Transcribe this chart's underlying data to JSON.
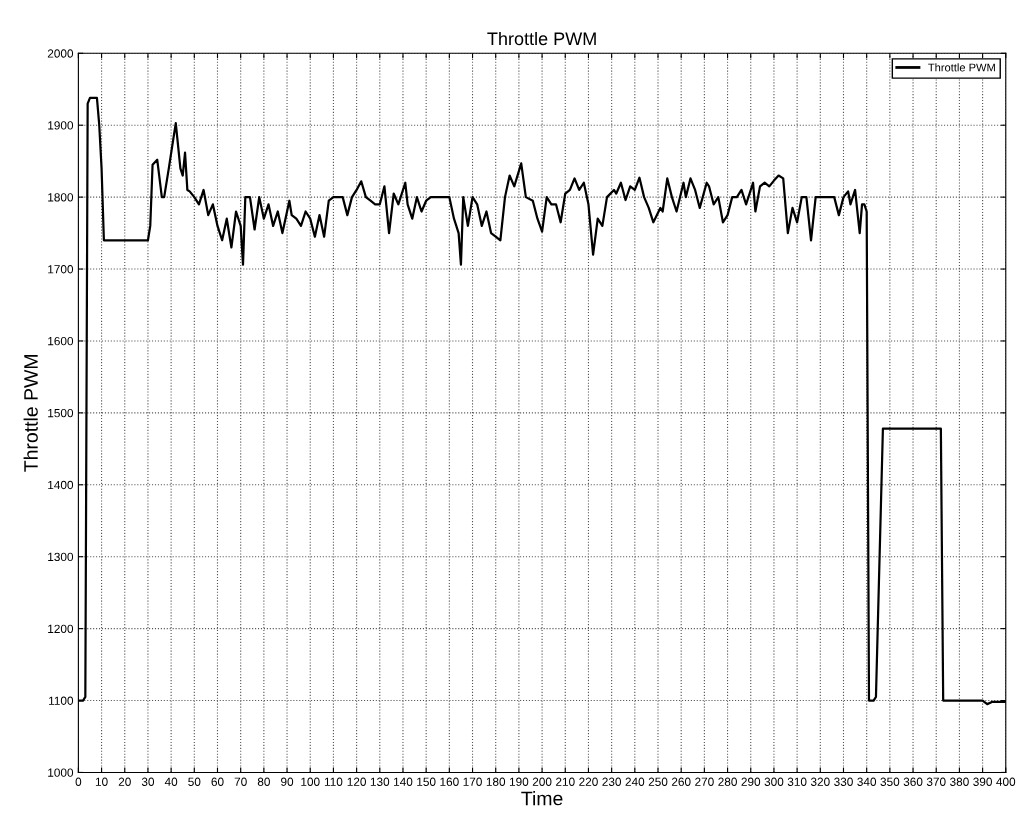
{
  "chart_data": {
    "type": "line",
    "title": "Throttle PWM",
    "xlabel": "Time",
    "ylabel": "Throttle PWM",
    "xlim": [
      0,
      400
    ],
    "xticks": [
      0,
      10,
      20,
      30,
      40,
      50,
      60,
      70,
      80,
      90,
      100,
      110,
      120,
      130,
      140,
      150,
      160,
      170,
      180,
      190,
      200,
      210,
      220,
      230,
      240,
      250,
      260,
      270,
      280,
      290,
      300,
      310,
      320,
      330,
      340,
      350,
      360,
      370,
      380,
      390,
      400
    ],
    "ylim": [
      1000,
      2000
    ],
    "yticks": [
      1000,
      1100,
      1200,
      1300,
      1400,
      1500,
      1600,
      1700,
      1800,
      1900,
      2000
    ],
    "grid": true,
    "legend": "top right",
    "marker": "none",
    "line_style": "solid",
    "series": [
      {
        "name": "Throttle PWM",
        "color": "#000000",
        "x": [
          0,
          2,
          3,
          4,
          5,
          8,
          9,
          10,
          11,
          30,
          31,
          32,
          34,
          36,
          37,
          39,
          42,
          44,
          45,
          46,
          47,
          48,
          50,
          52,
          54,
          56,
          58,
          60,
          62,
          64,
          66,
          68,
          70,
          71,
          72,
          74,
          76,
          78,
          80,
          82,
          84,
          86,
          88,
          91,
          92,
          94,
          96,
          98,
          100,
          102,
          104,
          106,
          108,
          110,
          114,
          116,
          118,
          120,
          122,
          124,
          126,
          128,
          130,
          132,
          134,
          136,
          138,
          141,
          142,
          144,
          146,
          148,
          150,
          152,
          160,
          162,
          164,
          165,
          166,
          168,
          170,
          172,
          174,
          176,
          178,
          180,
          182,
          184,
          186,
          188,
          191,
          193,
          196,
          198,
          200,
          202,
          204,
          206,
          208,
          210,
          212,
          214,
          216,
          218,
          220,
          222,
          224,
          226,
          228,
          231,
          232,
          234,
          236,
          238,
          240,
          242,
          244,
          246,
          248,
          251,
          252,
          254,
          256,
          258,
          261,
          262,
          264,
          266,
          268,
          271,
          272,
          274,
          276,
          278,
          280,
          282,
          284,
          286,
          288,
          291,
          292,
          294,
          296,
          298,
          300,
          302,
          304,
          306,
          308,
          310,
          312,
          314,
          316,
          318,
          326,
          328,
          330,
          332,
          333,
          335,
          336,
          337,
          338,
          339,
          340,
          341,
          343,
          344,
          347,
          372,
          373,
          390,
          392,
          394,
          400
        ],
        "values": [
          1100,
          1100,
          1105,
          1930,
          1938,
          1938,
          1900,
          1840,
          1740,
          1740,
          1760,
          1845,
          1852,
          1800,
          1800,
          1840,
          1903,
          1840,
          1830,
          1862,
          1810,
          1808,
          1800,
          1790,
          1810,
          1775,
          1790,
          1760,
          1740,
          1770,
          1730,
          1780,
          1760,
          1706,
          1800,
          1800,
          1755,
          1800,
          1770,
          1790,
          1760,
          1780,
          1750,
          1795,
          1775,
          1770,
          1760,
          1780,
          1770,
          1745,
          1775,
          1745,
          1795,
          1800,
          1800,
          1775,
          1800,
          1810,
          1822,
          1800,
          1795,
          1790,
          1790,
          1815,
          1750,
          1805,
          1790,
          1820,
          1790,
          1770,
          1800,
          1780,
          1795,
          1800,
          1800,
          1770,
          1750,
          1706,
          1800,
          1760,
          1800,
          1790,
          1760,
          1780,
          1750,
          1745,
          1740,
          1800,
          1830,
          1815,
          1847,
          1800,
          1795,
          1770,
          1752,
          1800,
          1790,
          1790,
          1765,
          1805,
          1810,
          1826,
          1810,
          1820,
          1790,
          1720,
          1770,
          1760,
          1800,
          1810,
          1805,
          1820,
          1796,
          1815,
          1810,
          1827,
          1800,
          1785,
          1765,
          1785,
          1780,
          1826,
          1800,
          1780,
          1820,
          1800,
          1826,
          1810,
          1785,
          1820,
          1815,
          1790,
          1800,
          1765,
          1775,
          1800,
          1800,
          1810,
          1790,
          1820,
          1780,
          1815,
          1820,
          1815,
          1823,
          1830,
          1826,
          1750,
          1785,
          1765,
          1800,
          1800,
          1740,
          1800,
          1800,
          1775,
          1800,
          1808,
          1790,
          1810,
          1780,
          1750,
          1790,
          1790,
          1780,
          1100,
          1100,
          1105,
          1478,
          1478,
          1100,
          1100,
          1095,
          1098,
          1098
        ]
      }
    ]
  }
}
